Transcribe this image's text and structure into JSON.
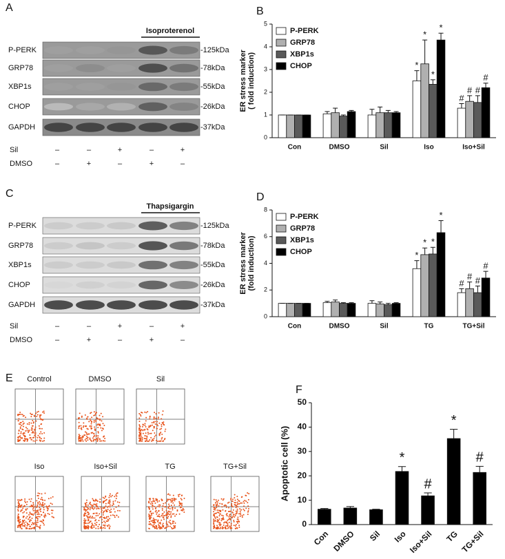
{
  "blots": [
    {
      "panel": "A",
      "treatment": "Isoproterenol",
      "rows": [
        {
          "label": "P-PERK",
          "marker": "-125kDa"
        },
        {
          "label": "GRP78",
          "marker": "-78kDa"
        },
        {
          "label": "XBP1s",
          "marker": "-55kDa"
        },
        {
          "label": "CHOP",
          "marker": "-26kDa"
        },
        {
          "label": "GAPDH",
          "marker": "-37kDa"
        }
      ],
      "conditions": [
        {
          "label": "Sil",
          "signs": [
            "–",
            "–",
            "+",
            "–",
            "+"
          ]
        },
        {
          "label": "DMSO",
          "signs": [
            "–",
            "+",
            "–",
            "+",
            "–"
          ]
        }
      ]
    },
    {
      "panel": "C",
      "treatment": "Thapsigargin",
      "rows": [
        {
          "label": "P-PERK",
          "marker": "-125kDa"
        },
        {
          "label": "GRP78",
          "marker": "-78kDa"
        },
        {
          "label": "XBP1s",
          "marker": "-55kDa"
        },
        {
          "label": "CHOP",
          "marker": "-26kDa"
        },
        {
          "label": "GAPDH",
          "marker": "-37kDa"
        }
      ],
      "conditions": [
        {
          "label": "Sil",
          "signs": [
            "–",
            "–",
            "+",
            "–",
            "+"
          ]
        },
        {
          "label": "DMSO",
          "signs": [
            "–",
            "+",
            "–",
            "+",
            "–"
          ]
        }
      ]
    }
  ],
  "flow": {
    "panel": "E",
    "plots": [
      "Control",
      "DMSO",
      "Sil",
      "Iso",
      "Iso+Sil",
      "TG",
      "TG+Sil"
    ]
  },
  "chart_data": [
    {
      "type": "bar",
      "panel": "B",
      "y_label": [
        "ER stress marker",
        "( fold induction)"
      ],
      "categories": [
        "Con",
        "DMSO",
        "Sil",
        "Iso",
        "Iso+Sil"
      ],
      "ylim": [
        0,
        5
      ],
      "yticks": [
        0,
        1,
        2,
        3,
        4,
        5
      ],
      "legend": "upper left",
      "series": [
        {
          "name": "P-PERK",
          "color": "#ffffff",
          "values": [
            1,
            1.05,
            1.0,
            2.5,
            1.3
          ],
          "errors": [
            0,
            0.1,
            0.25,
            0.45,
            0.2
          ],
          "markers": [
            null,
            null,
            null,
            "*",
            "#"
          ]
        },
        {
          "name": "GRP78",
          "color": "#b0b0b0",
          "values": [
            1,
            1.1,
            1.1,
            3.25,
            1.6
          ],
          "errors": [
            0,
            0.2,
            0.25,
            1.05,
            0.25
          ],
          "markers": [
            null,
            null,
            null,
            "*",
            "#"
          ]
        },
        {
          "name": "XBP1s",
          "color": "#5a5a5a",
          "values": [
            1,
            0.95,
            1.1,
            2.35,
            1.55
          ],
          "errors": [
            0,
            0.05,
            0.1,
            0.2,
            0.3
          ],
          "markers": [
            null,
            null,
            null,
            "*",
            "#"
          ]
        },
        {
          "name": "CHOP",
          "color": "#000000",
          "values": [
            1,
            1.15,
            1.1,
            4.3,
            2.2
          ],
          "errors": [
            0,
            0.05,
            0.05,
            0.3,
            0.2
          ],
          "markers": [
            null,
            null,
            null,
            "*",
            "#"
          ]
        }
      ]
    },
    {
      "type": "bar",
      "panel": "D",
      "y_label": [
        "ER stress marker",
        "(fold induction)"
      ],
      "categories": [
        "Con",
        "DMSO",
        "Sil",
        "TG",
        "TG+Sil"
      ],
      "ylim": [
        0,
        8
      ],
      "yticks": [
        0,
        2,
        4,
        6,
        8
      ],
      "legend": "upper left",
      "series": [
        {
          "name": "P-PERK",
          "color": "#ffffff",
          "values": [
            1,
            1.05,
            1.0,
            3.6,
            1.8
          ],
          "errors": [
            0,
            0.1,
            0.2,
            0.6,
            0.3
          ],
          "markers": [
            null,
            null,
            null,
            "*",
            "#"
          ]
        },
        {
          "name": "GRP78",
          "color": "#b0b0b0",
          "values": [
            1,
            1.1,
            0.95,
            4.65,
            2.1
          ],
          "errors": [
            0,
            0.15,
            0.15,
            0.5,
            0.5
          ],
          "markers": [
            null,
            null,
            null,
            "*",
            "#"
          ]
        },
        {
          "name": "XBP1s",
          "color": "#5a5a5a",
          "values": [
            1,
            1.0,
            0.9,
            4.7,
            1.8
          ],
          "errors": [
            0,
            0.05,
            0.1,
            0.5,
            0.5
          ],
          "markers": [
            null,
            null,
            null,
            "*",
            "#"
          ]
        },
        {
          "name": "CHOP",
          "color": "#000000",
          "values": [
            1,
            1.0,
            1.0,
            6.3,
            2.9
          ],
          "errors": [
            0,
            0.05,
            0.05,
            0.9,
            0.5
          ],
          "markers": [
            null,
            null,
            null,
            "*",
            "#"
          ]
        }
      ]
    },
    {
      "type": "bar",
      "panel": "F",
      "y_label": [
        "Apoptotic cell (%)"
      ],
      "categories": [
        "Con",
        "DMSO",
        "Sil",
        "Iso",
        "Iso+Sil",
        "TG",
        "TG+Sil"
      ],
      "ylim": [
        0,
        50
      ],
      "yticks": [
        0,
        10,
        20,
        30,
        40,
        50
      ],
      "xtick_rotation": -45,
      "color": "#000000",
      "values": [
        6.3,
        6.8,
        6.1,
        21.8,
        11.8,
        35.3,
        21.4
      ],
      "errors": [
        0.3,
        0.6,
        0.2,
        2.0,
        1.2,
        3.8,
        2.5
      ],
      "markers": [
        null,
        null,
        null,
        "*",
        "#",
        "*",
        "#"
      ]
    }
  ]
}
